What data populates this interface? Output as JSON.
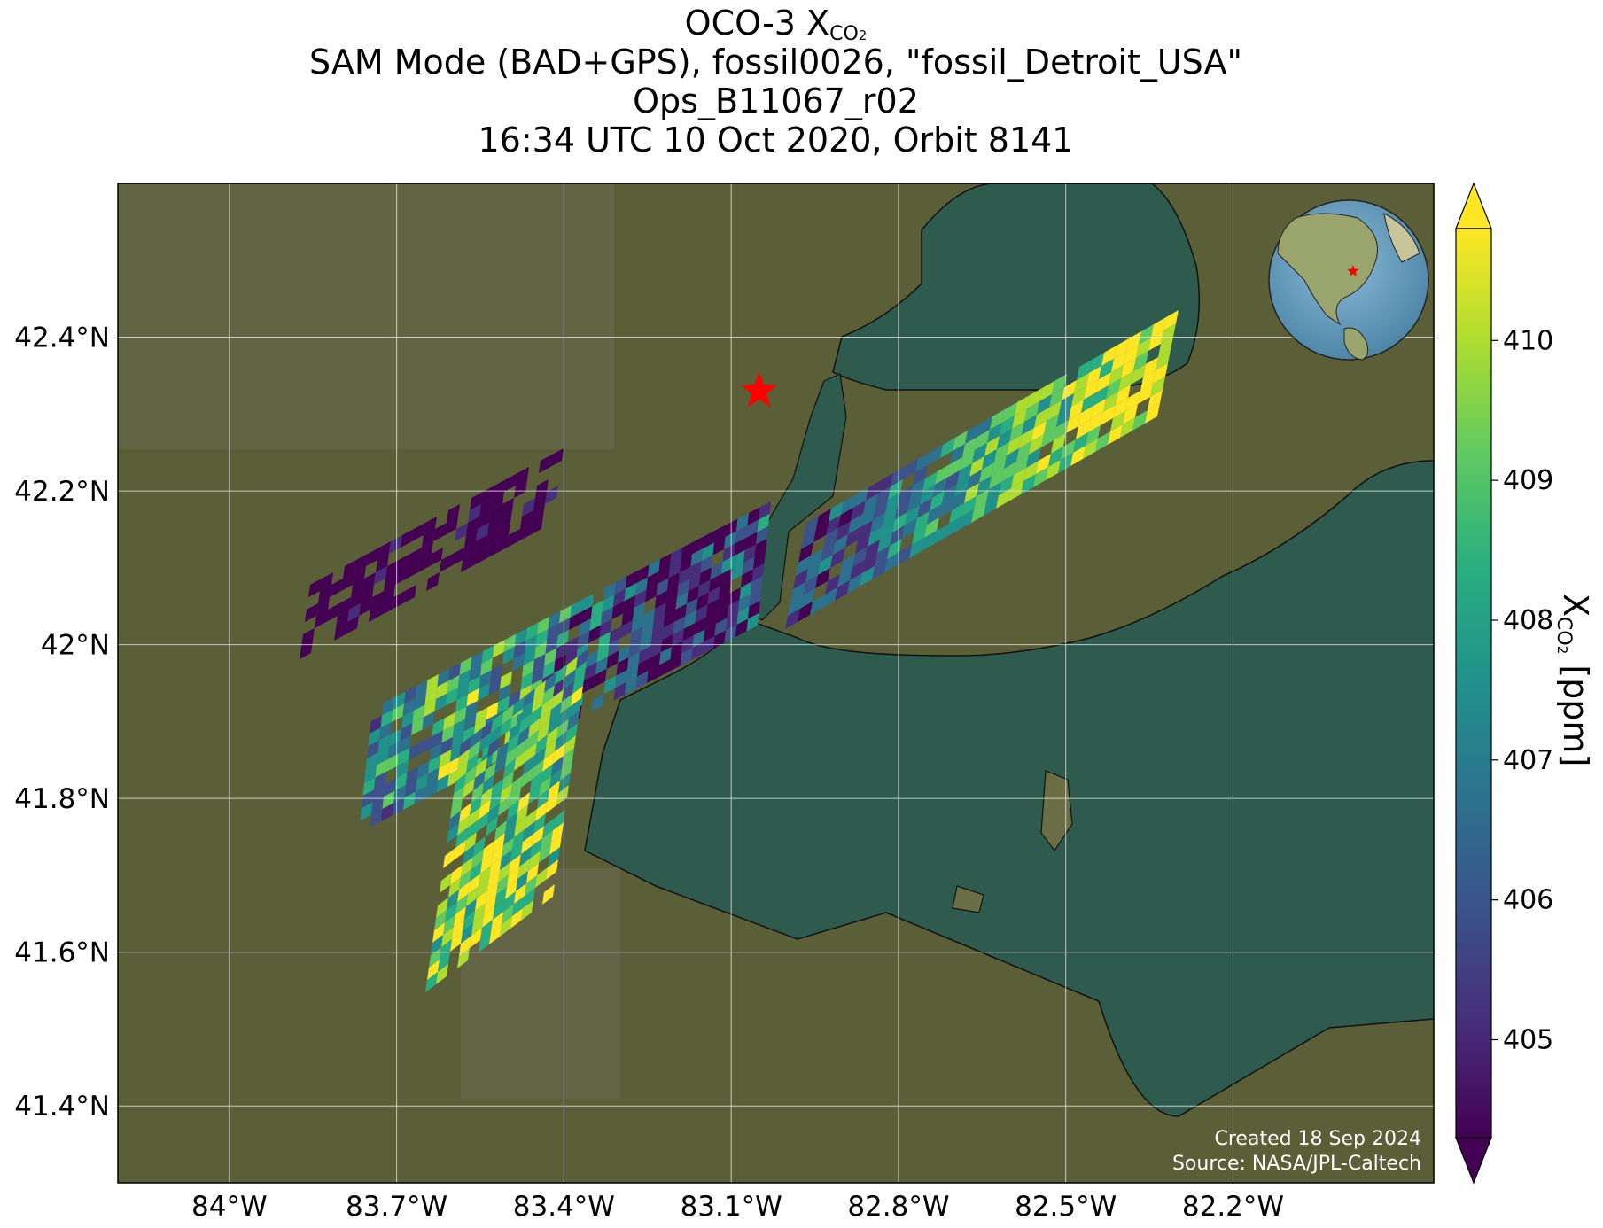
{
  "title": {
    "line1_prefix": "OCO-3 X",
    "line1_sub": "CO",
    "line1_subsub": "2",
    "line2": "SAM Mode (BAD+GPS), fossil0026, \"fossil_Detroit_USA\"",
    "line3": "Ops_B11067_r02",
    "line4": "16:34 UTC 10 Oct 2020, Orbit 8141"
  },
  "map": {
    "lon_range": [
      -84.2,
      -81.84
    ],
    "lat_range": [
      41.3,
      42.6
    ],
    "lon_ticks": [
      "84°W",
      "83.7°W",
      "83.4°W",
      "83.1°W",
      "82.8°W",
      "82.5°W",
      "82.2°W"
    ],
    "lon_tick_values": [
      -84.0,
      -83.7,
      -83.4,
      -83.1,
      -82.8,
      -82.5,
      -82.2
    ],
    "lat_ticks": [
      "42.4°N",
      "42.2°N",
      "42°N",
      "41.8°N",
      "41.6°N",
      "41.4°N"
    ],
    "lat_tick_values": [
      42.4,
      42.2,
      42.0,
      41.8,
      41.6,
      41.4
    ],
    "target_marker": {
      "lon": -83.05,
      "lat": 42.33,
      "icon": "red-star-icon"
    },
    "credit_line1": "Created 18 Sep 2024",
    "credit_line2": "Source: NASA/JPL-Caltech",
    "inset_globe": {
      "icon": "globe-icon",
      "marker": "red-star-icon"
    }
  },
  "colorbar": {
    "title_prefix": "X",
    "title_sub": "CO",
    "title_subsub": "2",
    "title_suffix": " [ppm]",
    "colormap": "viridis",
    "range": [
      404.3,
      410.8
    ],
    "ticks": [
      "405",
      "406",
      "407",
      "408",
      "409",
      "410"
    ],
    "tick_values": [
      405,
      406,
      407,
      408,
      409,
      410
    ],
    "extend": "both"
  },
  "colors": {
    "land": "#5a5f38",
    "lake": "#2f5a4e",
    "grid": "#e6e6e6",
    "marker": "#ff0000"
  }
}
